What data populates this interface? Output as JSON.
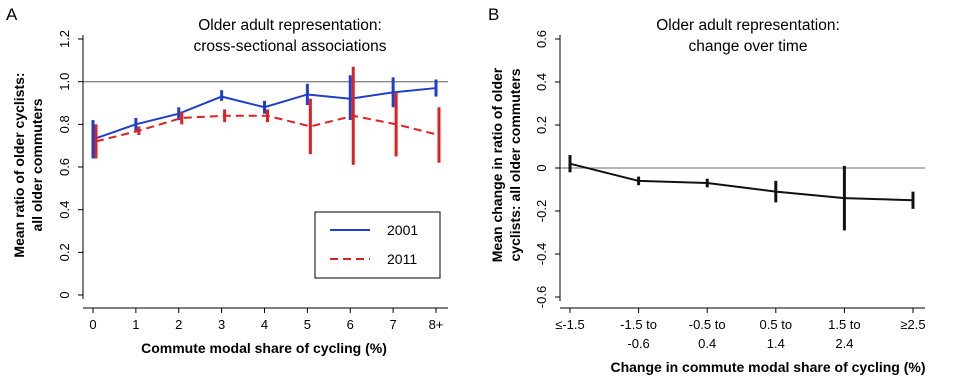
{
  "colors": {
    "series_2001": "#1f3fc8",
    "series_2011": "#e02020",
    "line_B": "#111111",
    "reference": "#888888"
  },
  "chart_data": [
    {
      "type": "line",
      "panel": "A",
      "title_lines": [
        "Older adult representation:",
        "cross-sectional associations"
      ],
      "xlabel": "Commute modal share of cycling (%)",
      "ylabel_lines": [
        "Mean ratio of older cyclists:",
        "all older commuters"
      ],
      "categories": [
        "0",
        "1",
        "2",
        "3",
        "4",
        "5",
        "6",
        "7",
        "8+"
      ],
      "yticks": [
        "0",
        "0.2",
        "0.4",
        "0.6",
        "0.8",
        "1.0",
        "1.2"
      ],
      "ylim": [
        0,
        1.2
      ],
      "reference_y": 1.0,
      "legend_position": "lower-right",
      "series": [
        {
          "name": "2001",
          "style": "solid",
          "values": [
            0.73,
            0.8,
            0.85,
            0.93,
            0.88,
            0.94,
            0.92,
            0.95,
            0.97
          ],
          "ci_low": [
            0.64,
            0.77,
            0.82,
            0.91,
            0.85,
            0.89,
            0.82,
            0.88,
            0.93
          ],
          "ci_high": [
            0.82,
            0.83,
            0.88,
            0.96,
            0.91,
            0.99,
            1.03,
            1.02,
            1.01
          ]
        },
        {
          "name": "2011",
          "style": "dashed",
          "values": [
            0.72,
            0.77,
            0.83,
            0.84,
            0.84,
            0.79,
            0.84,
            0.8,
            0.75
          ],
          "ci_low": [
            0.64,
            0.75,
            0.8,
            0.81,
            0.81,
            0.66,
            0.61,
            0.65,
            0.62
          ],
          "ci_high": [
            0.8,
            0.79,
            0.86,
            0.87,
            0.87,
            0.92,
            1.07,
            0.95,
            0.88
          ]
        }
      ]
    },
    {
      "type": "line",
      "panel": "B",
      "title_lines": [
        "Older adult representation:",
        "change over time"
      ],
      "xlabel": "Change in commute modal share of cycling (%)",
      "ylabel_lines": [
        "Mean change in ratio of older",
        "cyclists: all older commuters"
      ],
      "categories": [
        [
          "≤-1.5"
        ],
        [
          "-1.5 to",
          "-0.6"
        ],
        [
          "-0.5 to",
          "0.4"
        ],
        [
          "0.5 to",
          "1.4"
        ],
        [
          "1.5 to",
          "2.4"
        ],
        [
          "≥2.5"
        ]
      ],
      "yticks": [
        "-0.6",
        "-0.4",
        "-0.2",
        "0",
        "0.2",
        "0.4",
        "0.6"
      ],
      "ylim": [
        -0.6,
        0.6
      ],
      "reference_y": 0,
      "series": [
        {
          "values": [
            0.02,
            -0.06,
            -0.07,
            -0.11,
            -0.14,
            -0.15
          ],
          "ci_low": [
            -0.02,
            -0.08,
            -0.09,
            -0.16,
            -0.29,
            -0.19
          ],
          "ci_high": [
            0.06,
            -0.04,
            -0.05,
            -0.06,
            0.01,
            -0.11
          ]
        }
      ]
    }
  ]
}
